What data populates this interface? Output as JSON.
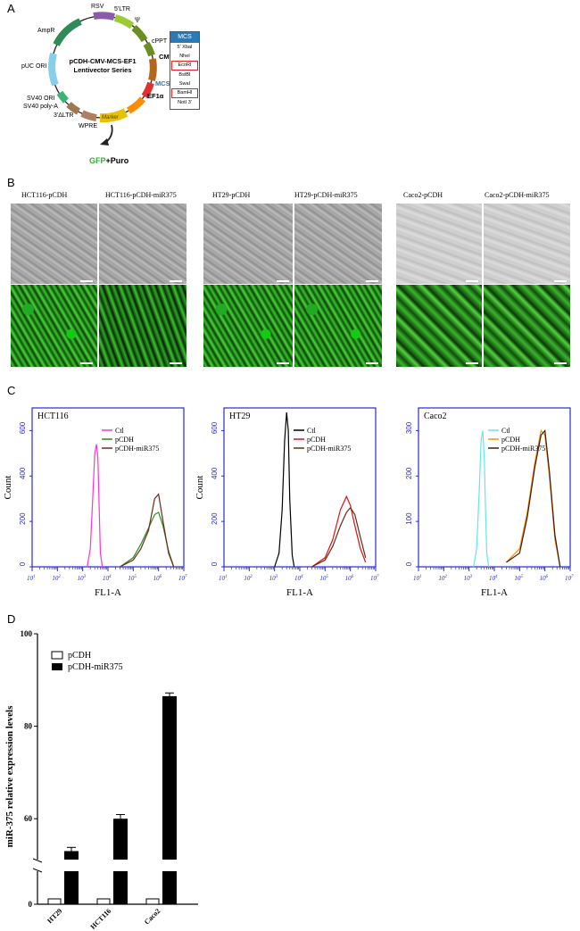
{
  "panels": {
    "a": "A",
    "b": "B",
    "c": "C",
    "d": "D"
  },
  "plasmid": {
    "name_line1": "pCDH-CMV-MCS-EF1",
    "name_line2": "Lentivector Series",
    "features": {
      "rsv": "RSV",
      "ltr5": "5'LTR",
      "psi": "Ψ",
      "cppt": "cPPT",
      "cmv": "CMV",
      "mcs": "MCS",
      "ef1a": "EF1α",
      "marker": "Marker",
      "wpre": "WPRE",
      "ltr3": "3'ΔLTR",
      "sv40polya": "SV40 poly-A",
      "sv40ori": "SV40 ORI",
      "puc": "pUC ORI",
      "ampr": "AmpR"
    },
    "output_gfp": "GFP",
    "output_puro": "+Puro",
    "mcs_box": {
      "title": "MCS",
      "sites": [
        "5' XbaI",
        "NheI",
        "EcoRI",
        "BstBI",
        "SwaI",
        "BamHI",
        "NotI 3'"
      ],
      "highlighted": [
        "EcoRI",
        "BamHI"
      ]
    },
    "colors": {
      "rsv": "#8e5aa8",
      "ltr": "#9acd32",
      "cppt": "#6b8e23",
      "cmv": "#b5651d",
      "mcs": "#ff8c00",
      "marker": "#e6c200",
      "wpre": "#b08060",
      "ltr3": "#a07850",
      "ampr": "#2e8b57",
      "puc": "#87ceeb",
      "sv40": "#3cb371",
      "gfp": "#2db52d"
    }
  },
  "micrographs": [
    {
      "label": "HCT116-pCDH"
    },
    {
      "label": "HCT116-pCDH-miR375"
    },
    {
      "label": "HT29-pCDH"
    },
    {
      "label": "HT29-pCDH-miR375"
    },
    {
      "label": "Caco2-pCDH"
    },
    {
      "label": "Caco2-pCDH-miR375"
    }
  ],
  "chart_data": [
    {
      "type": "line",
      "title": "HCT116",
      "xlabel": "FL1-A",
      "ylabel": "Count",
      "ylim": [
        0,
        700
      ],
      "xscale": "log",
      "xlim": [
        10,
        10000000
      ],
      "yticks": [
        0,
        200,
        400,
        600
      ],
      "series": [
        {
          "name": "Ctl",
          "color": "#ff33cc",
          "x": [
            1500,
            2000,
            2500,
            3000,
            3500,
            4000,
            4500,
            5000,
            6000
          ],
          "values": [
            0,
            80,
            300,
            500,
            540,
            480,
            250,
            60,
            0
          ]
        },
        {
          "name": "pCDH",
          "color": "#2e8b20",
          "x": [
            30000,
            100000,
            200000,
            400000,
            700000,
            1000000,
            1500000,
            2500000,
            4000000
          ],
          "values": [
            0,
            40,
            100,
            170,
            230,
            240,
            180,
            70,
            0
          ]
        },
        {
          "name": "pCDH-miR375",
          "color": "#6b2a1a",
          "x": [
            30000,
            100000,
            200000,
            400000,
            700000,
            1000000,
            1500000,
            2500000,
            4000000
          ],
          "values": [
            0,
            30,
            80,
            160,
            300,
            320,
            200,
            60,
            0
          ]
        }
      ]
    },
    {
      "type": "line",
      "title": "HT29",
      "xlabel": "FL1-A",
      "ylabel": "Count",
      "ylim": [
        0,
        700
      ],
      "xscale": "log",
      "xlim": [
        10,
        10000000
      ],
      "yticks": [
        0,
        200,
        400,
        600
      ],
      "series": [
        {
          "name": "Ctl",
          "color": "#000000",
          "x": [
            1000,
            1500,
            2000,
            2500,
            3000,
            3500,
            4000,
            5000,
            6000
          ],
          "values": [
            0,
            60,
            250,
            550,
            680,
            600,
            300,
            50,
            0
          ]
        },
        {
          "name": "pCDH",
          "color": "#e01010",
          "x": [
            30000,
            100000,
            200000,
            400000,
            700000,
            1000000,
            1500000,
            2500000,
            4000000
          ],
          "values": [
            0,
            40,
            120,
            250,
            310,
            270,
            180,
            80,
            20
          ]
        },
        {
          "name": "pCDH-miR375",
          "color": "#6b2a1a",
          "x": [
            30000,
            100000,
            200000,
            400000,
            700000,
            1000000,
            1500000,
            2500000,
            4000000
          ],
          "values": [
            0,
            30,
            90,
            180,
            240,
            260,
            230,
            130,
            40
          ]
        }
      ]
    },
    {
      "type": "line",
      "title": "Caco2",
      "xlabel": "FL1-A",
      "ylabel": "",
      "ylim": [
        0,
        350
      ],
      "xscale": "log",
      "xlim": [
        10,
        10000000
      ],
      "yticks": [
        0,
        100,
        200,
        300
      ],
      "series": [
        {
          "name": "Ctl",
          "color": "#66e6e6",
          "x": [
            1500,
            2000,
            2500,
            3000,
            3500,
            4000,
            4500,
            5000,
            6000
          ],
          "values": [
            0,
            40,
            160,
            280,
            300,
            240,
            120,
            30,
            0
          ]
        },
        {
          "name": "pCDH",
          "color": "#ff8c00",
          "x": [
            30000,
            100000,
            200000,
            400000,
            700000,
            1000000,
            1500000,
            2500000,
            4000000
          ],
          "values": [
            10,
            40,
            120,
            230,
            300,
            290,
            200,
            60,
            0
          ]
        },
        {
          "name": "pCDH-miR375",
          "color": "#3a1a10",
          "x": [
            30000,
            100000,
            200000,
            400000,
            700000,
            1000000,
            1500000,
            2500000,
            4000000
          ],
          "values": [
            10,
            30,
            110,
            220,
            290,
            300,
            210,
            70,
            0
          ]
        }
      ]
    },
    {
      "type": "bar",
      "title": "",
      "xlabel": "",
      "ylabel": "miR-375 relative expression levels",
      "categories": [
        "HT29",
        "HCT116",
        "Caco2"
      ],
      "yticks": [
        0,
        60,
        80,
        100
      ],
      "ylim": [
        0,
        100
      ],
      "axis_break": true,
      "series": [
        {
          "name": "pCDH",
          "color": "#ffffff",
          "values": [
            1,
            1,
            1
          ]
        },
        {
          "name": "pCDH-miR375",
          "color": "#000000",
          "values": [
            53,
            60,
            86.5
          ],
          "errors": [
            0.8,
            0.9,
            0.7
          ]
        }
      ]
    }
  ]
}
